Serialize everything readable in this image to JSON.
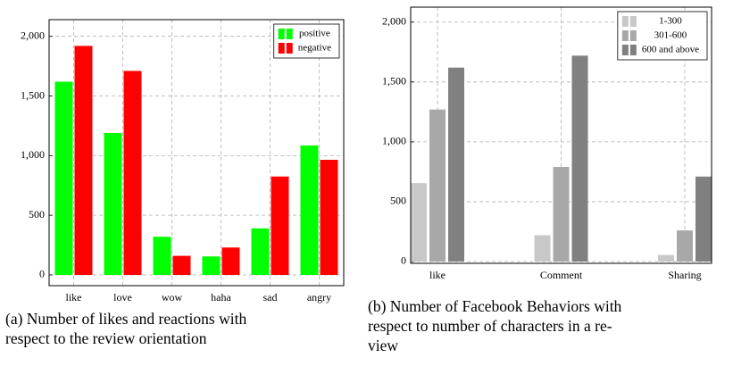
{
  "chart_data": [
    {
      "type": "bar",
      "caption": [
        "(a) Number of likes and reactions with",
        "respect to the review orientation"
      ],
      "categories": [
        "like",
        "love",
        "wow",
        "haha",
        "sad",
        "angry"
      ],
      "series": [
        {
          "name": "positive",
          "color": "#00ff00",
          "values": [
            1620,
            1190,
            320,
            155,
            390,
            1085
          ]
        },
        {
          "name": "negative",
          "color": "#ff0000",
          "values": [
            1920,
            1710,
            160,
            230,
            825,
            965
          ]
        }
      ],
      "ylim": [
        -90,
        2140
      ],
      "yticks": [
        0,
        500,
        {
          "value": 1000,
          "label": "1,000"
        },
        {
          "value": 1500,
          "label": "1,500"
        },
        {
          "value": 2000,
          "label": "2,000"
        }
      ],
      "grid": true,
      "legend": "north east"
    },
    {
      "type": "bar",
      "caption": [
        "(b) Number of Facebook Behaviors with",
        "respect to number of characters in a re-",
        "view"
      ],
      "categories": [
        "like",
        "Comment",
        "Sharing"
      ],
      "series": [
        {
          "name": "1-300",
          "color": "#c8c8c8",
          "values": [
            655,
            220,
            55
          ]
        },
        {
          "name": "301-600",
          "color": "#a8a8a8",
          "values": [
            1270,
            790,
            260
          ]
        },
        {
          "name": "600 and above",
          "color": "#808080",
          "values": [
            1620,
            1720,
            710
          ]
        }
      ],
      "ylim": [
        -15,
        2125
      ],
      "yticks": [
        0,
        500,
        {
          "value": 1000,
          "label": "1,000"
        },
        {
          "value": 1500,
          "label": "1,500"
        },
        {
          "value": 2000,
          "label": "2,000"
        }
      ],
      "grid": true,
      "legend": "north east"
    }
  ]
}
